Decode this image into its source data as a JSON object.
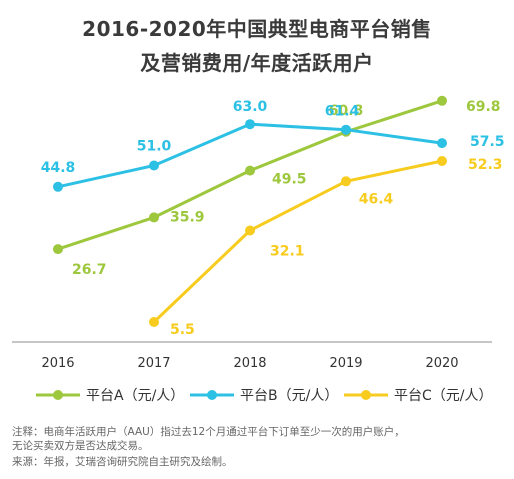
{
  "title_lines": [
    "2016-2020年中国典型电商平台销售",
    "及营销费用/年度活跃用户"
  ],
  "chart_data": {
    "type": "line",
    "title": "2016-2020年中国典型电商平台销售及营销费用/年度活跃用户",
    "x": [
      "2016",
      "2017",
      "2018",
      "2019",
      "2020"
    ],
    "series": [
      {
        "name": "平台A（元/人）",
        "color": "#9dc73c",
        "values": [
          26.7,
          35.9,
          49.5,
          60.8,
          69.8
        ]
      },
      {
        "name": "平台B（元/人）",
        "color": "#2cc0e4",
        "values": [
          44.8,
          51.0,
          63.0,
          61.4,
          57.5
        ]
      },
      {
        "name": "平台C（元/人）",
        "color": "#f7cc1f",
        "values": [
          null,
          5.5,
          32.1,
          46.4,
          52.3
        ]
      }
    ],
    "grid": false,
    "legend": "bottom",
    "ylim": [
      0,
      75
    ]
  },
  "notes": [
    "注释：电商年活跃用户（AAU）指过去12个月通过平台下订单至少一次的用户账户，",
    "无论买卖双方是否达成交易。",
    "来源：年报，艾瑞咨询研究院自主研究及绘制。"
  ]
}
